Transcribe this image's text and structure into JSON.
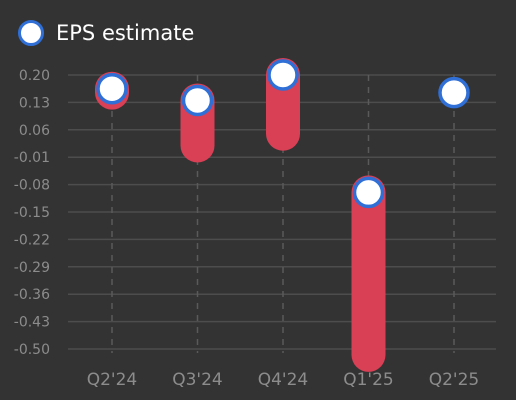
{
  "chart_data": {
    "type": "bar",
    "title": "",
    "xlabel": "",
    "ylabel": "",
    "categories": [
      "Q2'24",
      "Q3'24",
      "Q4'24",
      "Q1'25",
      "Q2'25"
    ],
    "y_ticks": [
      "0.20",
      "0.13",
      "0.06",
      "-0.01",
      "-0.08",
      "-0.15",
      "-0.22",
      "-0.29",
      "-0.36",
      "-0.43",
      "-0.50"
    ],
    "ylim": [
      -0.5,
      0.2
    ],
    "grid": true,
    "legend_position": "top-left",
    "series": [
      {
        "name": "EPS estimate",
        "values": [
          0.165,
          0.135,
          0.2,
          -0.1,
          0.155
        ]
      }
    ],
    "actual_values": [
      0.155,
      0.02,
      0.05,
      -0.515,
      null
    ],
    "colors": {
      "background": "#333333",
      "grid": "#4d4d4d",
      "tick_label": "#8c8c8c",
      "axis_label": "#cfcfcf",
      "bar": "#d93f55",
      "marker_fill": "#ffffff",
      "marker_stroke": "#2f6fd6",
      "legend_text": "#ffffff"
    }
  },
  "legend": {
    "label": "EPS estimate",
    "icon": "circle-marker-icon"
  }
}
